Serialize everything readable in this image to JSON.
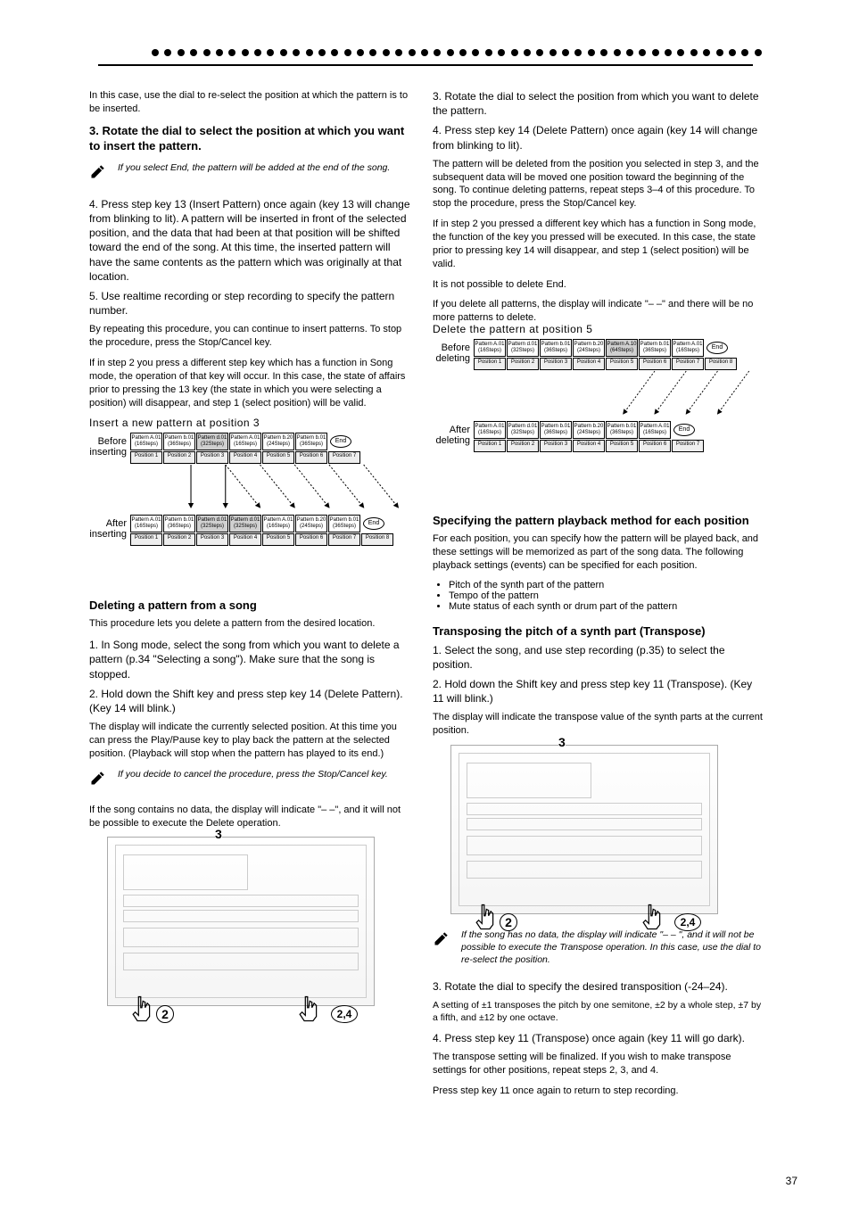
{
  "page_number": "37",
  "header_dots": 48,
  "left": {
    "para1": "In this case, use the dial to re-select the position at which the pattern is to be inserted.",
    "para2": "3. Rotate the dial to select the position at which you want to insert the pattern.",
    "note1": "If you select End, the pattern will be added at the end of the song.",
    "para3": "4. Press step key 13 (Insert Pattern) once again (key 13 will change from blinking to lit). A pattern will be inserted in front of the selected position, and the data that had been at that position will be shifted toward the end of the song. At this time, the inserted pattern will have the same contents as the pattern which was originally at that location.",
    "para4": "5. Use realtime recording or step recording to specify the pattern number.",
    "para5": "By repeating this procedure, you can continue to insert patterns. To stop the procedure, press the Stop/Cancel key.",
    "para6": "If in step 2 you press a different step key which has a function in Song mode, the operation of that key will occur. In this case, the state of affairs prior to pressing the 13 key (the state in which you were selecting a position) will disappear, and step 1 (select position) will be valid.",
    "insert_diag": {
      "title": "Insert a new pattern at position 3",
      "before_label": "Before inserting",
      "after_label": "After inserting",
      "before": [
        {
          "p": "Pattern A.01",
          "s": "(16Steps)",
          "pos": "Position 1"
        },
        {
          "p": "Pattern b.01",
          "s": "(36Steps)",
          "pos": "Position 2"
        },
        {
          "p": "Pattern d.01",
          "s": "(32Steps)",
          "pos": "Position 3",
          "shade": true
        },
        {
          "p": "Pattern A.01",
          "s": "(16Steps)",
          "pos": "Position 4"
        },
        {
          "p": "Pattern b.20",
          "s": "(24Steps)",
          "pos": "Position 5"
        },
        {
          "p": "Pattern b.01",
          "s": "(36Steps)",
          "pos": "Position 6"
        }
      ],
      "before_end": "End",
      "before_end_pos": "Position 7",
      "after": [
        {
          "p": "Pattern A.01",
          "s": "(16Steps)",
          "pos": "Position 1"
        },
        {
          "p": "Pattern b.01",
          "s": "(36Steps)",
          "pos": "Position 2"
        },
        {
          "p": "Pattern d.01",
          "s": "(32Steps)",
          "pos": "Position 3",
          "shade": true
        },
        {
          "p": "Pattern d.01",
          "s": "(32Steps)",
          "pos": "Position 4",
          "shade": true
        },
        {
          "p": "Pattern A.01",
          "s": "(16Steps)",
          "pos": "Position 5"
        },
        {
          "p": "Pattern b.20",
          "s": "(24Steps)",
          "pos": "Position 6"
        },
        {
          "p": "Pattern b.01",
          "s": "(36Steps)",
          "pos": "Position 7"
        }
      ],
      "after_end": "End",
      "after_end_pos": "Position 8"
    },
    "h_delete": "Deleting a pattern from a song",
    "del_intro": "This procedure lets you delete a pattern from the desired location.",
    "del_step1": "1. In Song mode, select the song from which you want to delete a pattern (p.34 \"Selecting a song\"). Make sure that the song is stopped.",
    "del_step2": "2. Hold down the Shift key and press step key 14 (Delete Pattern). (Key 14 will blink.)",
    "del_para": "The display will indicate the currently selected position. At this time you can press the Play/Pause key to play back the pattern at the selected position. (Playback will stop when the pattern has played to its end.)",
    "del_note": "If you decide to cancel the procedure, press the Stop/Cancel key.",
    "del_err": "If the song contains no data, the display will indicate \"– –\", and it will not be possible to execute the Delete operation.",
    "device_labels": {
      "n2": "2",
      "n24": "2,4",
      "n3": "3"
    }
  },
  "right": {
    "del_step3": "3. Rotate the dial to select the position from which you want to delete the pattern.",
    "del_step4": "4. Press step key 14 (Delete Pattern) once again (key 14 will change from blinking to lit).",
    "del_para1": "The pattern will be deleted from the position you selected in step 3, and the subsequent data will be moved one position toward the beginning of the song. To continue deleting patterns, repeat steps 3–4 of this procedure. To stop the procedure, press the Stop/Cancel key.",
    "del_para2": "If in step 2 you pressed a different key which has a function in Song mode, the function of the key you pressed will be executed. In this case, the state prior to pressing key 14 will disappear, and step 1 (select position) will be valid.",
    "del_para3": "It is not possible to delete End.",
    "del_para4": "If you delete all patterns, the display will indicate \"– –\" and there will be no more patterns to delete.",
    "delete_diag": {
      "title": "Delete the pattern at position 5",
      "before_label": "Before deleting",
      "after_label": "After deleting",
      "before": [
        {
          "p": "Pattern A.01",
          "s": "(16Steps)",
          "pos": "Position 1"
        },
        {
          "p": "Pattern d.01",
          "s": "(32Steps)",
          "pos": "Position 2"
        },
        {
          "p": "Pattern b.01",
          "s": "(36Steps)",
          "pos": "Position 3"
        },
        {
          "p": "Pattern b.20",
          "s": "(24Steps)",
          "pos": "Position 4"
        },
        {
          "p": "Pattern A.10",
          "s": "(64Steps)",
          "pos": "Position 5",
          "shade": true
        },
        {
          "p": "Pattern b.01",
          "s": "(36Steps)",
          "pos": "Position 6"
        },
        {
          "p": "Pattern A.01",
          "s": "(16Steps)",
          "pos": "Position 7"
        }
      ],
      "before_end": "End",
      "before_end_pos": "Position 8",
      "after": [
        {
          "p": "Pattern A.01",
          "s": "(16Steps)",
          "pos": "Position 1"
        },
        {
          "p": "Pattern d.01",
          "s": "(32Steps)",
          "pos": "Position 2"
        },
        {
          "p": "Pattern b.01",
          "s": "(36Steps)",
          "pos": "Position 3"
        },
        {
          "p": "Pattern b.20",
          "s": "(24Steps)",
          "pos": "Position 4"
        },
        {
          "p": "Pattern b.01",
          "s": "(36Steps)",
          "pos": "Position 5"
        },
        {
          "p": "Pattern A.01",
          "s": "(16Steps)",
          "pos": "Position 6"
        }
      ],
      "after_end": "End",
      "after_end_pos": "Position 7"
    },
    "h_spec": "Specifying the pattern playback method for each position",
    "spec_intro": "For each position, you can specify how the pattern will be played back, and these settings will be memorized as part of the song data. The following playback settings (events) can be specified for each position.",
    "bullets": [
      "Pitch of the synth part of the pattern",
      "Tempo of the pattern",
      "Mute status of each synth or drum part of the pattern"
    ],
    "h_trans": "Transposing the pitch of a synth part (Transpose)",
    "trans1": "1. Select the song, and use step recording (p.35) to select the position.",
    "trans2": "2. Hold down the Shift key and press step key 11 (Transpose). (Key 11 will blink.)",
    "trans_para": "The display will indicate the transpose value of the synth parts at the current position.",
    "trans_note": "If the song has no data, the display will indicate \"– – \", and it will not be possible to execute the Transpose operation. In this case, use the dial to re-select the position.",
    "trans3": "3. Rotate the dial to specify the desired transposition (-24–24).",
    "trans3_note": "A setting of ±1 transposes the pitch by one semitone, ±2 by a whole step, ±7 by a fifth, and ±12 by one octave.",
    "trans4": "4. Press step key 11 (Transpose) once again (key 11 will go dark).",
    "trans4_para": "The transpose setting will be finalized. If you wish to make transpose settings for other positions, repeat steps 2, 3, and 4.",
    "trans_final": "Press step key 11 once again to return to step recording."
  }
}
